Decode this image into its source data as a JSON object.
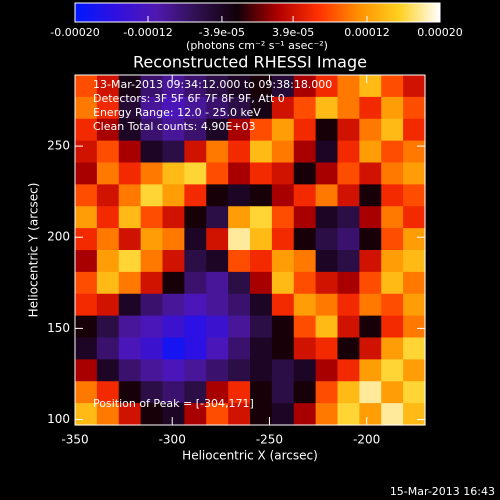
{
  "chart_data": {
    "type": "heatmap",
    "title": "Reconstructed RHESSI Image",
    "xlabel": "Heliocentric X (arcsec)",
    "ylabel": "Heliocentric Y (arcsec)",
    "xlim": [
      -350,
      -170
    ],
    "ylim": [
      97,
      289
    ],
    "xticks": [
      -350,
      -300,
      -250,
      -200
    ],
    "yticks": [
      100,
      150,
      200,
      250
    ],
    "annotations": [
      "13-Mar-2013 09:34:12.000 to 09:38:18.000",
      "Detectors: 3F 5F 6F 7F 8F 9F, Att 0",
      "Energy Range: 12.0 - 25.0 keV",
      "Clean      Total counts: 4.90E+03",
      "Position of Peak = [-304,171]"
    ],
    "footer": "15-Mar-2013 16:43",
    "colorbar": {
      "label": "(photons cm⁻² s⁻¹ asec⁻²)",
      "lim": [
        -0.0002,
        0.0002
      ],
      "ticks": [
        {
          "value": -0.0002,
          "label": "-0.00020"
        },
        {
          "value": -0.00012,
          "label": "-0.00012"
        },
        {
          "value": -3.9e-05,
          "label": "-3.9e-05"
        },
        {
          "value": 3.9e-05,
          "label": "3.9e-05"
        },
        {
          "value": 0.00012,
          "label": "0.00012"
        },
        {
          "value": 0.0002,
          "label": "0.00020"
        }
      ]
    },
    "colormap": [
      "#0018ff",
      "#3010e0",
      "#5018b0",
      "#301050",
      "#100008",
      "#b00000",
      "#ff3000",
      "#ff9000",
      "#ffd020",
      "#ffffff"
    ],
    "z": [
      [
        8e-05,
        4e-05,
        -3e-05,
        -8e-05,
        -0.0001,
        -8e-05,
        -6e-05,
        -4e-05,
        -2e-05,
        -5e-05,
        2e-05,
        6e-05,
        0.0001,
        0.00014,
        8e-05,
        4e-05
      ],
      [
        0.0001,
        6e-05,
        -5e-05,
        -0.0001,
        -0.00012,
        -0.0001,
        -8e-05,
        -6e-05,
        -3e-05,
        4e-05,
        8e-05,
        0.00014,
        0.0001,
        6e-05,
        0.00012,
        8e-05
      ],
      [
        6e-05,
        2e-05,
        -4e-05,
        -8e-05,
        -0.0001,
        -8e-05,
        -4e-05,
        2e-05,
        8e-05,
        0.00012,
        6e-05,
        -2e-05,
        4e-05,
        0.0001,
        0.00014,
        6e-05
      ],
      [
        4e-05,
        8e-05,
        2e-05,
        -4e-05,
        -6e-05,
        4e-05,
        0.0001,
        6e-05,
        0.00014,
        0.0001,
        2e-05,
        -4e-05,
        6e-05,
        0.00012,
        8e-05,
        0.0001
      ],
      [
        2e-05,
        0.0001,
        6e-05,
        0.0001,
        0.00014,
        0.00016,
        8e-05,
        2e-05,
        6e-05,
        4e-05,
        -2e-05,
        2e-05,
        8e-05,
        4e-05,
        0.0001,
        0.00012
      ],
      [
        8e-05,
        4e-05,
        0.0001,
        0.00016,
        0.00012,
        6e-05,
        -2e-05,
        -4e-05,
        -2e-05,
        2e-05,
        6e-05,
        0.0001,
        4e-05,
        -2e-05,
        6e-05,
        8e-05
      ],
      [
        0.00012,
        6e-05,
        0.00014,
        8e-05,
        4e-05,
        -2e-05,
        -6e-05,
        0.00012,
        0.00016,
        8e-05,
        2e-05,
        -4e-05,
        -6e-05,
        2e-05,
        0.0001,
        6e-05
      ],
      [
        6e-05,
        0.0001,
        4e-05,
        0.00012,
        0.0001,
        -4e-05,
        4e-05,
        0.00018,
        0.00014,
        6e-05,
        -2e-05,
        -6e-05,
        -8e-05,
        -2e-05,
        8e-05,
        0.00012
      ],
      [
        2e-05,
        0.00012,
        0.00016,
        0.0001,
        4e-05,
        -6e-05,
        -4e-05,
        8e-05,
        6e-05,
        0.00012,
        0.0001,
        -4e-05,
        -6e-05,
        4e-05,
        0.00012,
        0.00014
      ],
      [
        8e-05,
        0.00014,
        0.0001,
        4e-05,
        -2e-05,
        -8e-05,
        -0.0001,
        -6e-05,
        2e-05,
        0.00014,
        8e-05,
        4e-05,
        2e-05,
        8e-05,
        0.00014,
        0.0001
      ],
      [
        6e-05,
        4e-05,
        -4e-05,
        -8e-05,
        -0.0001,
        -0.00012,
        -0.0001,
        -8e-05,
        -4e-05,
        6e-05,
        0.00012,
        0.0001,
        6e-05,
        0.0001,
        8e-05,
        0.00012
      ],
      [
        -2e-05,
        -6e-05,
        -0.0001,
        -0.00012,
        -0.00014,
        -0.00016,
        -0.00014,
        -0.0001,
        -6e-05,
        -2e-05,
        8e-05,
        0.00014,
        4e-05,
        -2e-05,
        6e-05,
        0.0001
      ],
      [
        -4e-05,
        -8e-05,
        -0.00012,
        -0.00014,
        -0.00018,
        -0.00016,
        -0.00012,
        -8e-05,
        -4e-05,
        -2e-05,
        4e-05,
        6e-05,
        -2e-05,
        4e-05,
        0.00012,
        0.00016
      ],
      [
        2e-05,
        -4e-05,
        -8e-05,
        -0.0001,
        -0.00012,
        -0.0001,
        -8e-05,
        -6e-05,
        -4e-05,
        -6e-05,
        -4e-05,
        2e-05,
        6e-05,
        0.00012,
        0.00016,
        0.00012
      ],
      [
        0.0001,
        6e-05,
        -2e-05,
        -6e-05,
        -8e-05,
        -6e-05,
        2e-05,
        6e-05,
        -2e-05,
        -6e-05,
        -2e-05,
        8e-05,
        0.00014,
        0.00018,
        0.00012,
        0.00016
      ],
      [
        0.00014,
        0.0001,
        4e-05,
        -2e-05,
        -4e-05,
        2e-05,
        8e-05,
        4e-05,
        -2e-05,
        -4e-05,
        2e-05,
        0.0001,
        0.00016,
        0.00012,
        0.00018,
        0.00014
      ]
    ]
  }
}
